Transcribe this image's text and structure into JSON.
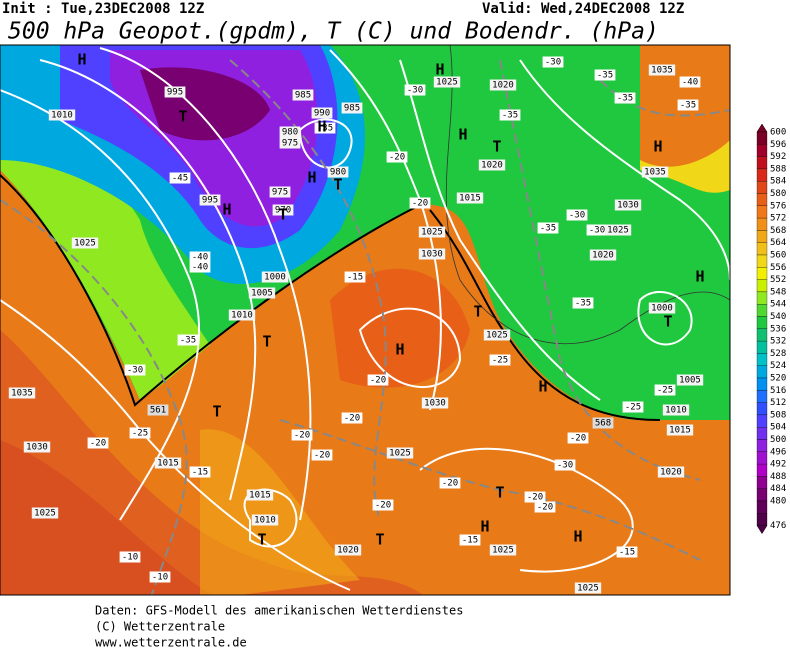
{
  "header": {
    "init": "Init : Tue,23DEC2008 12Z",
    "valid": "Valid: Wed,24DEC2008 12Z",
    "title": "500 hPa Geopot.(gpdm), T (C) und Bodendr. (hPa)"
  },
  "colorbar": {
    "labels": [
      600,
      596,
      592,
      588,
      584,
      580,
      576,
      572,
      568,
      564,
      560,
      556,
      552,
      548,
      544,
      540,
      536,
      532,
      528,
      524,
      520,
      516,
      512,
      508,
      504,
      500,
      496,
      492,
      488,
      484,
      480,
      476
    ],
    "colors": [
      "#7a0028",
      "#a0002a",
      "#c01020",
      "#d82818",
      "#e04818",
      "#e86018",
      "#f07818",
      "#f09018",
      "#f0a818",
      "#f0c018",
      "#f0d818",
      "#f0f000",
      "#c8f000",
      "#90e820",
      "#50d830",
      "#20c840",
      "#10c070",
      "#00c0a0",
      "#00c0c8",
      "#00a8e0",
      "#0090f0",
      "#2070ff",
      "#3050ff",
      "#5040ff",
      "#7030f0",
      "#9020e0",
      "#a010d0",
      "#b000c8",
      "#900090",
      "#780070",
      "#600058",
      "#500048"
    ]
  },
  "map": {
    "pressure_centers": [
      "H",
      "H",
      "H",
      "H",
      "H",
      "H",
      "H",
      "H",
      "H",
      "H",
      "H",
      "H",
      "T",
      "T",
      "T",
      "T",
      "T",
      "T",
      "T",
      "T",
      "T",
      "T",
      "T"
    ],
    "isobar_labels": [
      "995",
      "985",
      "990",
      "985",
      "980",
      "975",
      "980",
      "975",
      "970",
      "995",
      "1010",
      "1025",
      "1010",
      "1005",
      "1000",
      "1035",
      "1030",
      "1025",
      "1015",
      "1015",
      "1010",
      "1020",
      "1025",
      "1030",
      "1025",
      "1030",
      "1025",
      "1015",
      "1020",
      "1025",
      "1020",
      "1035",
      "1035",
      "1030",
      "1025",
      "1020",
      "1000",
      "1005",
      "1010",
      "1015",
      "1020",
      "1025",
      "1025"
    ],
    "geopotential_labels": [
      "561",
      "568"
    ],
    "temperature_labels": [
      "-45",
      "-40",
      "-40",
      "-35",
      "-30",
      "-25",
      "-20",
      "-15",
      "-10",
      "-10",
      "-15",
      "-20",
      "-20",
      "-20",
      "-20",
      "-20",
      "-20",
      "-20",
      "-20",
      "-15",
      "-15",
      "-25",
      "-30",
      "-35",
      "-20",
      "-30",
      "-35",
      "-35",
      "-40",
      "-35",
      "-35",
      "-35",
      "-30",
      "-30",
      "-35",
      "-25",
      "-20",
      "-25",
      "-30",
      "-20"
    ]
  },
  "footer": {
    "line1": "Daten: GFS-Modell des amerikanischen Wetterdienstes",
    "line2": "(C) Wetterzentrale",
    "line3": "www.wetterzentrale.de"
  }
}
